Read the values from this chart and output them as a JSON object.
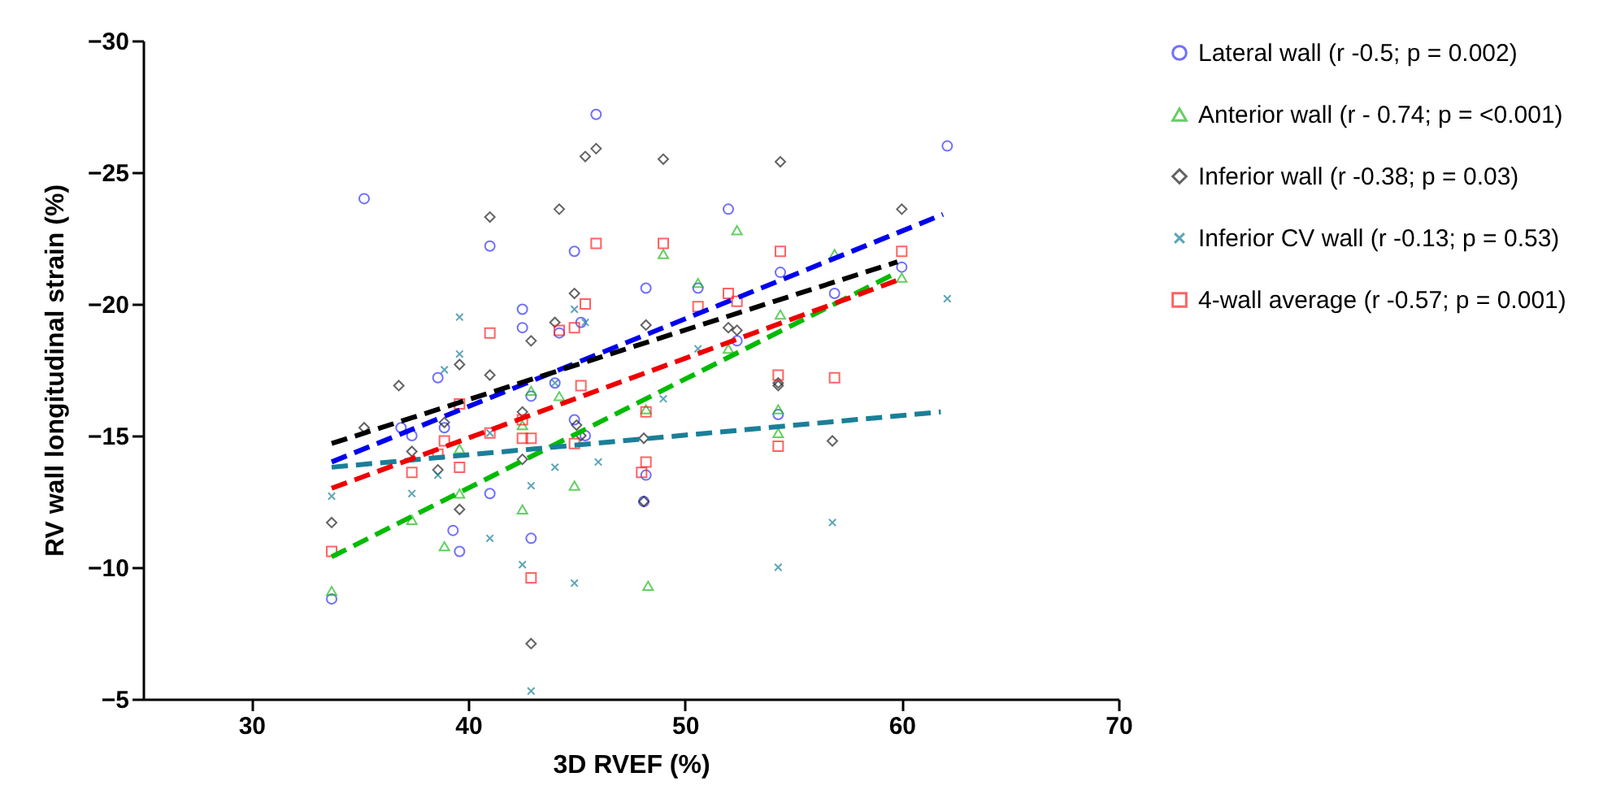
{
  "chart_data": {
    "type": "scatter",
    "xlabel": "3D RVEF (%)",
    "ylabel": "RV wall longitudinal strain (%)",
    "xlim": [
      25,
      70
    ],
    "xticks": [
      30,
      40,
      50,
      60,
      70
    ],
    "ylim": [
      -5,
      -30
    ],
    "yticks": [
      -5,
      -10,
      -15,
      -20,
      -25,
      -30
    ],
    "grid": false,
    "legend": "right",
    "series": [
      {
        "name": "Lateral wall (r -0.5; p = 0.002)",
        "marker": "circle",
        "color": "#3333ff",
        "x": [
          33.7,
          35.2,
          41.0,
          42.5,
          42.5,
          38.6,
          42.9,
          36.9,
          37.4,
          38.9,
          41.0,
          39.3,
          39.6,
          42.9,
          45.9,
          52.0,
          44.9,
          54.4,
          48.2,
          50.6,
          56.9,
          45.2,
          44.2,
          52.4,
          44.0,
          44.9,
          45.4,
          54.3,
          48.2,
          48.1,
          62.1,
          60.0
        ],
        "values": [
          -8.8,
          -24.0,
          -22.2,
          -19.8,
          -19.1,
          -17.2,
          -16.5,
          -15.3,
          -15.0,
          -15.3,
          -12.8,
          -11.4,
          -10.6,
          -11.1,
          -27.2,
          -23.6,
          -22.0,
          -21.2,
          -20.6,
          -20.6,
          -20.4,
          -19.3,
          -18.9,
          -18.6,
          -17.0,
          -15.6,
          -15.0,
          -15.8,
          -13.5,
          -12.5,
          -26.0,
          -21.4
        ]
      },
      {
        "name": "Anterior wall (r - 0.74; p = <0.001)",
        "marker": "triangle",
        "color": "#22bb22",
        "x": [
          42.9,
          39.6,
          42.5,
          39.6,
          37.4,
          42.5,
          38.9,
          33.7,
          52.4,
          49.0,
          50.6,
          56.9,
          54.4,
          52.0,
          44.2,
          48.2,
          54.3,
          54.3,
          44.9,
          48.3,
          60.0
        ],
        "values": [
          -16.7,
          -14.5,
          -15.4,
          -12.8,
          -11.8,
          -12.2,
          -10.8,
          -9.1,
          -22.8,
          -21.9,
          -20.8,
          -21.9,
          -19.6,
          -18.3,
          -16.5,
          -16.0,
          -16.0,
          -15.1,
          -13.1,
          -9.3,
          -21.0
        ]
      },
      {
        "name": "Inferior wall (r -0.38; p = 0.03)",
        "marker": "diamond",
        "color": "#222222",
        "x": [
          41.0,
          42.9,
          39.6,
          41.0,
          36.8,
          42.5,
          35.2,
          38.9,
          37.4,
          42.5,
          38.6,
          39.6,
          33.7,
          42.9,
          45.4,
          45.9,
          49.0,
          54.4,
          44.2,
          44.9,
          44.0,
          48.2,
          52.0,
          52.4,
          54.3,
          54.3,
          45.0,
          45.2,
          48.1,
          56.8,
          48.1,
          60.0
        ],
        "values": [
          -23.3,
          -18.6,
          -17.7,
          -17.3,
          -16.9,
          -15.9,
          -15.3,
          -15.5,
          -14.4,
          -14.1,
          -13.7,
          -12.2,
          -11.7,
          -7.1,
          -25.6,
          -25.9,
          -25.5,
          -25.4,
          -23.6,
          -20.4,
          -19.3,
          -19.2,
          -19.1,
          -19.0,
          -17.0,
          -16.9,
          -15.4,
          -15.0,
          -14.9,
          -14.8,
          -12.5,
          -23.6
        ]
      },
      {
        "name": "Inferior CV wall (r -0.13; p = 0.53)",
        "marker": "cross",
        "color": "#1a7f99",
        "x": [
          39.6,
          39.6,
          38.9,
          41.0,
          38.6,
          33.7,
          37.4,
          42.9,
          41.0,
          42.5,
          42.9,
          44.9,
          45.4,
          50.6,
          44.0,
          49.0,
          44.0,
          46.0,
          56.8,
          54.3,
          44.9,
          62.1
        ],
        "values": [
          -19.5,
          -18.1,
          -17.5,
          -15.1,
          -13.5,
          -12.7,
          -12.8,
          -13.1,
          -11.1,
          -10.1,
          -5.3,
          -19.8,
          -19.3,
          -18.3,
          -17.0,
          -16.4,
          -13.8,
          -14.0,
          -11.7,
          -10.0,
          -9.4,
          -20.2
        ]
      },
      {
        "name": "4-wall average (r -0.57; p = 0.001)",
        "marker": "square",
        "color": "#ff2222",
        "x": [
          41.0,
          39.6,
          38.9,
          38.6,
          41.0,
          42.5,
          42.5,
          42.9,
          37.4,
          39.6,
          33.7,
          42.9,
          45.9,
          49.0,
          54.4,
          52.0,
          52.4,
          45.4,
          50.6,
          44.9,
          44.2,
          54.3,
          56.9,
          45.2,
          48.2,
          44.9,
          54.3,
          48.2,
          48.0,
          60.0
        ],
        "values": [
          -18.9,
          -16.2,
          -14.8,
          -14.3,
          -15.1,
          -15.6,
          -14.9,
          -14.9,
          -13.6,
          -13.8,
          -10.6,
          -9.6,
          -22.3,
          -22.3,
          -22.0,
          -20.4,
          -20.1,
          -20.0,
          -19.9,
          -19.1,
          -19.0,
          -17.3,
          -17.2,
          -16.9,
          -15.9,
          -14.7,
          -14.6,
          -14.0,
          -13.6,
          -22.0
        ]
      },
      {
        "type": "line",
        "line_style": "dashed",
        "color": "#0000ee",
        "x": [
          33.7,
          61.9
        ],
        "values": [
          -14.0,
          -23.4
        ]
      },
      {
        "type": "line",
        "line_style": "dashed",
        "color": "#00bb00",
        "x": [
          33.7,
          59.8
        ],
        "values": [
          -10.4,
          -21.2
        ]
      },
      {
        "type": "line",
        "line_style": "dashed",
        "color": "#000000",
        "x": [
          33.7,
          59.8
        ],
        "values": [
          -14.7,
          -21.6
        ]
      },
      {
        "type": "line",
        "line_style": "dashed",
        "color": "#1a7f99",
        "x": [
          33.7,
          61.8
        ],
        "values": [
          -13.8,
          -15.9
        ]
      },
      {
        "type": "line",
        "line_style": "dashed",
        "color": "#ee0000",
        "x": [
          33.7,
          59.8
        ],
        "values": [
          -13.0,
          -20.9
        ]
      }
    ]
  }
}
